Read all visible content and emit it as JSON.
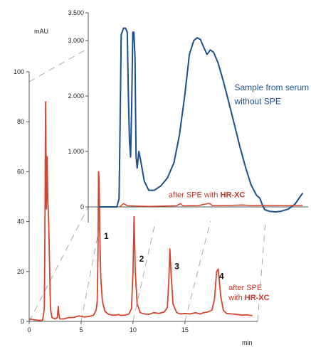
{
  "chart_data": [
    {
      "type": "line",
      "panel": "main",
      "ylabel": "mAU",
      "xlabel": "min",
      "xlim": [
        0,
        22
      ],
      "ylim": [
        0,
        100
      ],
      "x_ticks": [
        "0",
        "5",
        "10",
        "15"
      ],
      "y_ticks": [
        "0",
        "20",
        "40",
        "60",
        "80",
        "100"
      ],
      "grid": false,
      "series": [
        {
          "name": "after SPE with HR-XC",
          "color": "#d4452d",
          "points": [
            [
              0,
              1
            ],
            [
              0.5,
              0.6
            ],
            [
              1.0,
              0.4
            ],
            [
              1.3,
              0.5
            ],
            [
              1.45,
              5
            ],
            [
              1.5,
              25
            ],
            [
              1.58,
              88
            ],
            [
              1.66,
              45
            ],
            [
              1.72,
              66
            ],
            [
              1.8,
              48
            ],
            [
              1.88,
              40
            ],
            [
              1.95,
              25
            ],
            [
              2.05,
              5
            ],
            [
              2.2,
              1.5
            ],
            [
              2.5,
              1
            ],
            [
              2.7,
              1.5
            ],
            [
              2.75,
              3.5
            ],
            [
              2.8,
              6
            ],
            [
              2.85,
              3
            ],
            [
              2.95,
              1
            ],
            [
              3.3,
              1
            ],
            [
              3.8,
              1.5
            ],
            [
              4.3,
              1.6
            ],
            [
              4.8,
              2.2
            ],
            [
              5.3,
              1.8
            ],
            [
              5.8,
              2
            ],
            [
              6.2,
              2.5
            ],
            [
              6.45,
              4.5
            ],
            [
              6.55,
              8
            ],
            [
              6.62,
              25
            ],
            [
              6.68,
              60
            ],
            [
              6.74,
              57
            ],
            [
              6.8,
              35
            ],
            [
              6.9,
              17
            ],
            [
              7.05,
              8
            ],
            [
              7.3,
              4
            ],
            [
              7.6,
              3
            ],
            [
              8.0,
              2.5
            ],
            [
              8.4,
              2.5
            ],
            [
              8.6,
              2.8
            ],
            [
              8.8,
              2.4
            ],
            [
              9.2,
              2.5
            ],
            [
              9.6,
              3
            ],
            [
              9.85,
              5
            ],
            [
              10.0,
              20
            ],
            [
              10.1,
              42
            ],
            [
              10.22,
              20
            ],
            [
              10.4,
              7
            ],
            [
              10.7,
              3.5
            ],
            [
              11.1,
              3
            ],
            [
              11.5,
              2.8
            ],
            [
              12.0,
              3.5
            ],
            [
              12.5,
              3.2
            ],
            [
              13.0,
              3.8
            ],
            [
              13.3,
              5.5
            ],
            [
              13.45,
              16
            ],
            [
              13.55,
              29
            ],
            [
              13.68,
              18
            ],
            [
              13.85,
              7
            ],
            [
              14.2,
              3.5
            ],
            [
              14.6,
              3
            ],
            [
              15.0,
              3.2
            ],
            [
              15.5,
              3
            ],
            [
              16.0,
              3.5
            ],
            [
              16.5,
              3
            ],
            [
              16.8,
              3.5
            ],
            [
              17.2,
              3.8
            ],
            [
              17.6,
              4.5
            ],
            [
              17.85,
              9
            ],
            [
              18.05,
              20
            ],
            [
              18.2,
              21
            ],
            [
              18.45,
              10
            ],
            [
              18.7,
              4.5
            ],
            [
              19.0,
              3.2
            ],
            [
              19.5,
              3
            ],
            [
              20.0,
              2.8
            ],
            [
              20.5,
              2.5
            ],
            [
              21.0,
              2.6
            ],
            [
              21.5,
              2.3
            ]
          ]
        }
      ],
      "annotations": [
        {
          "text": "1",
          "x": 7.2,
          "y": 33
        },
        {
          "text": "2",
          "x": 10.6,
          "y": 24
        },
        {
          "text": "3",
          "x": 14.0,
          "y": 21
        },
        {
          "text": "4",
          "x": 18.3,
          "y": 17
        },
        {
          "text": "after SPE",
          "x": 19.2,
          "y": 12.5
        },
        {
          "text": "with ",
          "text_bold": "HR-XC",
          "x": 19.2,
          "y": 8.5
        }
      ]
    },
    {
      "type": "line",
      "panel": "inset",
      "xlim": [
        0,
        20
      ],
      "ylim": [
        0,
        3500
      ],
      "y_ticks": [
        "0",
        "1.000",
        "2.000",
        "3.000",
        "3.500"
      ],
      "grid": false,
      "series": [
        {
          "name": "Sample from serum without SPE",
          "color": "#1c4f8c",
          "points": [
            [
              1,
              0
            ],
            [
              2.6,
              0
            ],
            [
              2.8,
              150
            ],
            [
              2.9,
              1500
            ],
            [
              3.0,
              3100
            ],
            [
              3.2,
              3220
            ],
            [
              3.4,
              3220
            ],
            [
              3.55,
              3150
            ],
            [
              3.65,
              2000
            ],
            [
              3.75,
              1200
            ],
            [
              3.85,
              900
            ],
            [
              3.95,
              1800
            ],
            [
              4.05,
              3150
            ],
            [
              4.15,
              3150
            ],
            [
              4.25,
              2700
            ],
            [
              4.35,
              900
            ],
            [
              4.45,
              700
            ],
            [
              4.6,
              1000
            ],
            [
              4.8,
              800
            ],
            [
              5.1,
              460
            ],
            [
              5.5,
              300
            ],
            [
              6.0,
              300
            ],
            [
              6.6,
              380
            ],
            [
              7.2,
              520
            ],
            [
              7.8,
              800
            ],
            [
              8.3,
              1300
            ],
            [
              8.8,
              2050
            ],
            [
              9.2,
              2750
            ],
            [
              9.6,
              3000
            ],
            [
              9.9,
              3050
            ],
            [
              10.2,
              3020
            ],
            [
              10.5,
              2880
            ],
            [
              10.8,
              2750
            ],
            [
              11.1,
              2830
            ],
            [
              11.4,
              2790
            ],
            [
              11.8,
              2600
            ],
            [
              12.3,
              2260
            ],
            [
              12.8,
              1870
            ],
            [
              13.3,
              1480
            ],
            [
              13.8,
              1080
            ],
            [
              14.3,
              720
            ],
            [
              14.8,
              400
            ],
            [
              15.3,
              210
            ],
            [
              15.6,
              160
            ],
            [
              15.85,
              30
            ],
            [
              16.05,
              -50
            ],
            [
              16.5,
              -80
            ],
            [
              17.0,
              -90
            ],
            [
              17.5,
              -80
            ],
            [
              18.2,
              -40
            ],
            [
              18.8,
              50
            ],
            [
              19.5,
              250
            ]
          ]
        },
        {
          "name": "after SPE with HR-XC",
          "color": "#d4452d",
          "points": [
            [
              2.85,
              0
            ],
            [
              3.0,
              25
            ],
            [
              3.2,
              60
            ],
            [
              3.4,
              40
            ],
            [
              3.6,
              20
            ],
            [
              4.2,
              15
            ],
            [
              5.5,
              10
            ],
            [
              7.0,
              15
            ],
            [
              8.0,
              20
            ],
            [
              8.4,
              60
            ],
            [
              8.6,
              20
            ],
            [
              10.0,
              25
            ],
            [
              11.0,
              65
            ],
            [
              11.3,
              25
            ],
            [
              13.0,
              30
            ],
            [
              14.0,
              35
            ],
            [
              15.0,
              25
            ],
            [
              16.0,
              30
            ],
            [
              17.0,
              28
            ],
            [
              18.0,
              25
            ],
            [
              19.0,
              30
            ],
            [
              19.5,
              30
            ]
          ]
        }
      ],
      "annotations": [
        {
          "text": "Sample from serum",
          "x": 13.3,
          "y": 2100
        },
        {
          "text": "without SPE",
          "x": 13.3,
          "y": 1850
        },
        {
          "text": "after SPE with ",
          "text_bold": "HR-XC",
          "x": 7.3,
          "y": 170
        }
      ]
    }
  ]
}
